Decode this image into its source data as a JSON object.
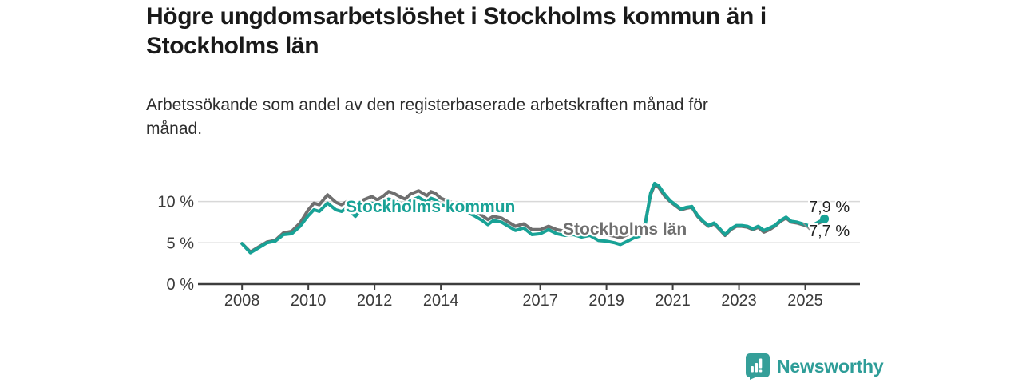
{
  "header": {
    "title_line1": "Högre ungdomsarbetslöshet i Stockholms kommun än i",
    "title_line2": "Stockholms län",
    "subtitle_line1": "Arbetssökande som andel av den registerbaserade arbetskraften månad för",
    "subtitle_line2": "månad."
  },
  "footer": {
    "logo_icon": "bar-chart-speech-bubble",
    "logo_text": "Newsworthy",
    "logo_color": "#359f99"
  },
  "colors": {
    "kommun_line": "#18a296",
    "lan_line": "#6f6f6f",
    "gridline": "#d8d8d8",
    "axis": "#3d3d3d",
    "background": "#ffffff"
  },
  "chart_data": {
    "type": "line",
    "title": "Högre ungdomsarbetslöshet i Stockholms kommun än i Stockholms län",
    "subtitle": "Arbetssökande som andel av den registerbaserade arbetskraften månad för månad.",
    "y_unit": "%",
    "xlim": [
      2006.67,
      2026.65
    ],
    "ylim": [
      0,
      12.6
    ],
    "grid": "horizontal",
    "legend_position": "inline-labels",
    "x_ticks": [
      {
        "label": "2008",
        "year": 2008
      },
      {
        "label": "2010",
        "year": 2010
      },
      {
        "label": "2012",
        "year": 2012
      },
      {
        "label": "2014",
        "year": 2014
      },
      {
        "label": "2017",
        "year": 2017
      },
      {
        "label": "2019",
        "year": 2019
      },
      {
        "label": "2021",
        "year": 2021
      },
      {
        "label": "2023",
        "year": 2023
      },
      {
        "label": "2025",
        "year": 2025
      }
    ],
    "y_ticks": [
      {
        "label": "0 %",
        "value": 0
      },
      {
        "label": "5 %",
        "value": 5
      },
      {
        "label": "10 %",
        "value": 10
      }
    ],
    "x": [
      2008.0,
      2008.25,
      2008.5,
      2008.75,
      2009.0,
      2009.25,
      2009.5,
      2009.75,
      2010.0,
      2010.17,
      2010.33,
      2010.58,
      2010.83,
      2011.0,
      2011.17,
      2011.42,
      2011.67,
      2011.92,
      2012.08,
      2012.25,
      2012.42,
      2012.58,
      2012.75,
      2012.92,
      2013.08,
      2013.33,
      2013.58,
      2013.7,
      2013.83,
      2014.0,
      2014.25,
      2014.5,
      2014.75,
      2015.0,
      2015.25,
      2015.42,
      2015.58,
      2015.83,
      2016.0,
      2016.25,
      2016.5,
      2016.75,
      2017.0,
      2017.25,
      2017.5,
      2017.75,
      2018.0,
      2018.25,
      2018.5,
      2018.75,
      2019.0,
      2019.25,
      2019.42,
      2019.58,
      2019.83,
      2020.0,
      2020.17,
      2020.33,
      2020.45,
      2020.58,
      2020.75,
      2020.92,
      2021.08,
      2021.25,
      2021.42,
      2021.58,
      2021.75,
      2021.92,
      2022.08,
      2022.25,
      2022.42,
      2022.58,
      2022.75,
      2022.92,
      2023.08,
      2023.25,
      2023.42,
      2023.58,
      2023.75,
      2023.92,
      2024.08,
      2024.25,
      2024.42,
      2024.58,
      2024.75,
      2024.92,
      2025.08,
      2025.25,
      2025.58
    ],
    "series": [
      {
        "name": "Stockholms län",
        "color": "#6f6f6f",
        "end_value_label": "7,7 %",
        "values": [
          4.9,
          3.9,
          4.5,
          5.1,
          5.3,
          6.2,
          6.4,
          7.4,
          9.0,
          9.8,
          9.6,
          10.8,
          9.9,
          9.6,
          10.0,
          8.9,
          10.2,
          10.6,
          10.2,
          10.6,
          11.2,
          11.0,
          10.6,
          10.3,
          10.9,
          11.3,
          10.7,
          11.2,
          11.0,
          10.4,
          10.0,
          9.6,
          9.4,
          8.9,
          8.3,
          7.8,
          8.2,
          8.0,
          7.6,
          7.0,
          7.3,
          6.6,
          6.6,
          7.0,
          6.6,
          6.4,
          6.5,
          6.3,
          6.4,
          6.1,
          6.0,
          5.8,
          5.6,
          5.9,
          6.2,
          6.3,
          7.4,
          10.8,
          12.0,
          11.7,
          10.7,
          10.0,
          9.5,
          9.0,
          9.2,
          9.3,
          8.2,
          7.5,
          7.0,
          7.3,
          6.6,
          5.9,
          6.6,
          7.0,
          7.0,
          6.9,
          6.6,
          6.9,
          6.3,
          6.6,
          7.0,
          7.6,
          8.0,
          7.5,
          7.4,
          7.2,
          7.0,
          7.1,
          7.7
        ]
      },
      {
        "name": "Stockholms kommun",
        "color": "#18a296",
        "end_dot": true,
        "end_value_label": "7,9 %",
        "values": [
          4.9,
          3.8,
          4.4,
          5.0,
          5.2,
          6.0,
          6.1,
          7.0,
          8.3,
          9.0,
          8.8,
          9.8,
          9.0,
          8.8,
          9.2,
          8.2,
          9.4,
          9.8,
          9.4,
          9.8,
          10.3,
          10.1,
          9.8,
          9.5,
          10.1,
          10.5,
          9.9,
          10.4,
          10.2,
          9.6,
          9.3,
          8.9,
          8.8,
          8.3,
          7.7,
          7.2,
          7.7,
          7.5,
          7.1,
          6.5,
          6.8,
          6.0,
          6.1,
          6.6,
          6.1,
          5.9,
          6.0,
          5.7,
          5.9,
          5.3,
          5.2,
          5.0,
          4.8,
          5.1,
          5.6,
          5.8,
          7.2,
          11.0,
          12.2,
          11.9,
          10.9,
          10.1,
          9.6,
          9.1,
          9.3,
          9.4,
          8.3,
          7.6,
          7.1,
          7.4,
          6.7,
          6.0,
          6.7,
          7.1,
          7.1,
          7.0,
          6.7,
          7.0,
          6.5,
          6.8,
          7.1,
          7.7,
          8.1,
          7.6,
          7.5,
          7.3,
          7.1,
          7.2,
          7.9
        ]
      }
    ],
    "end_labels": {
      "kommun": "7,9 %",
      "lan": "7,7 %"
    }
  }
}
